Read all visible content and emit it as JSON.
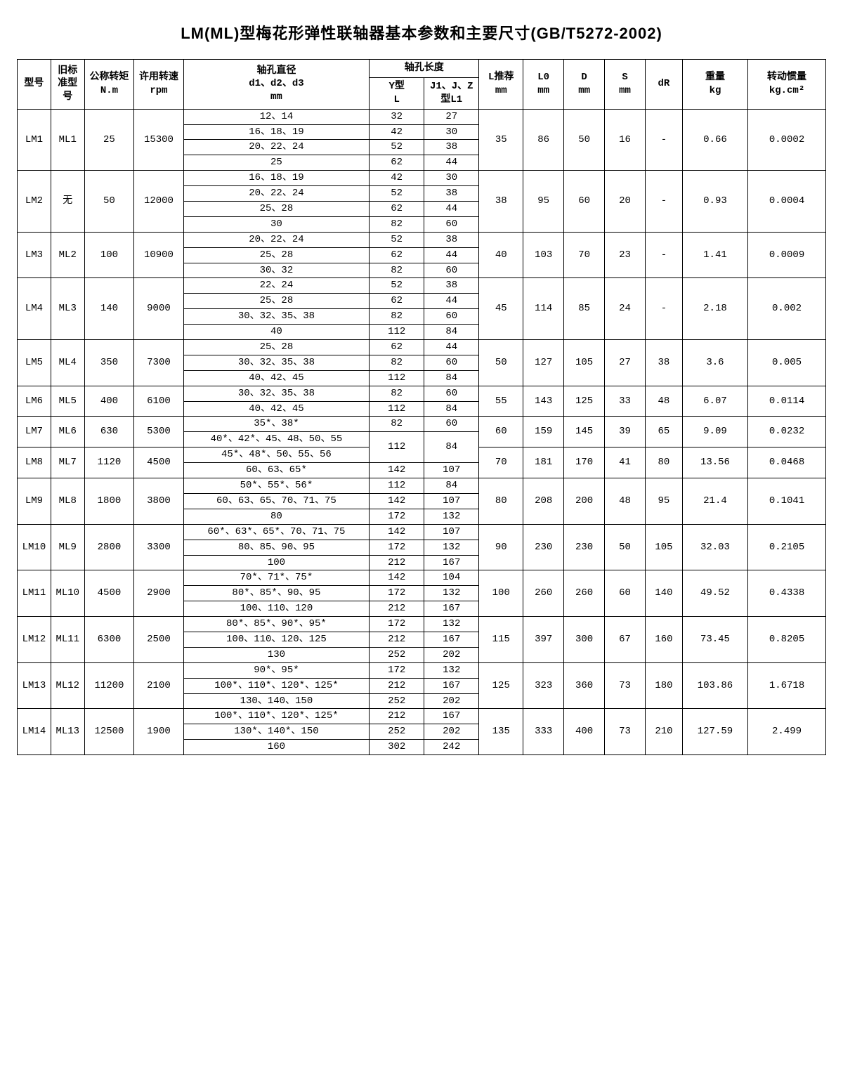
{
  "title": "LM(ML)型梅花形弹性联轴器基本参数和主要尺寸(GB/T5272-2002)",
  "headers": {
    "model": "型号",
    "old_model": "旧标准型号",
    "torque": "公称转矩\nN.m",
    "speed": "许用转速\nrpm",
    "shaft_d": "轴孔直径\nd1、d2、d3\nmm",
    "shaft_len": "轴孔长度",
    "shaft_len_y": "Y型\nL",
    "shaft_len_jz": "J1、J、Z型L1",
    "l_rec": "L推荐\nmm",
    "l0": "L0\nmm",
    "dia": "D\nmm",
    "s": "S\nmm",
    "dr": "dR",
    "weight": "重量\nkg",
    "inertia": "转动惯量\nkg.cm²"
  },
  "rows": [
    {
      "model": "LM1",
      "old": "ML1",
      "torque": "25",
      "speed": "15300",
      "sub": [
        {
          "d": "12、14",
          "yl": "32",
          "l1": "27"
        },
        {
          "d": "16、18、19",
          "yl": "42",
          "l1": "30"
        },
        {
          "d": "20、22、24",
          "yl": "52",
          "l1": "38"
        },
        {
          "d": "25",
          "yl": "62",
          "l1": "44"
        }
      ],
      "lrec": "35",
      "l0": "86",
      "dia": "50",
      "s": "16",
      "dr": "-",
      "weight": "0.66",
      "inertia": "0.0002"
    },
    {
      "model": "LM2",
      "old": "无",
      "torque": "50",
      "speed": "12000",
      "sub": [
        {
          "d": "16、18、19",
          "yl": "42",
          "l1": "30"
        },
        {
          "d": "20、22、24",
          "yl": "52",
          "l1": "38"
        },
        {
          "d": "25、28",
          "yl": "62",
          "l1": "44"
        },
        {
          "d": "30",
          "yl": "82",
          "l1": "60"
        }
      ],
      "lrec": "38",
      "l0": "95",
      "dia": "60",
      "s": "20",
      "dr": "-",
      "weight": "0.93",
      "inertia": "0.0004"
    },
    {
      "model": "LM3",
      "old": "ML2",
      "torque": "100",
      "speed": "10900",
      "sub": [
        {
          "d": "20、22、24",
          "yl": "52",
          "l1": "38"
        },
        {
          "d": "25、28",
          "yl": "62",
          "l1": "44"
        },
        {
          "d": "30、32",
          "yl": "82",
          "l1": "60"
        }
      ],
      "lrec": "40",
      "l0": "103",
      "dia": "70",
      "s": "23",
      "dr": "-",
      "weight": "1.41",
      "inertia": "0.0009"
    },
    {
      "model": "LM4",
      "old": "ML3",
      "torque": "140",
      "speed": "9000",
      "sub": [
        {
          "d": "22、24",
          "yl": "52",
          "l1": "38"
        },
        {
          "d": "25、28",
          "yl": "62",
          "l1": "44"
        },
        {
          "d": "30、32、35、38",
          "yl": "82",
          "l1": "60"
        },
        {
          "d": "40",
          "yl": "112",
          "l1": "84"
        }
      ],
      "lrec": "45",
      "l0": "114",
      "dia": "85",
      "s": "24",
      "dr": "-",
      "weight": "2.18",
      "inertia": "0.002"
    },
    {
      "model": "LM5",
      "old": "ML4",
      "torque": "350",
      "speed": "7300",
      "sub": [
        {
          "d": "25、28",
          "yl": "62",
          "l1": "44"
        },
        {
          "d": "30、32、35、38",
          "yl": "82",
          "l1": "60"
        },
        {
          "d": "40、42、45",
          "yl": "112",
          "l1": "84"
        }
      ],
      "lrec": "50",
      "l0": "127",
      "dia": "105",
      "s": "27",
      "dr": "38",
      "weight": "3.6",
      "inertia": "0.005"
    },
    {
      "model": "LM6",
      "old": "ML5",
      "torque": "400",
      "speed": "6100",
      "sub": [
        {
          "d": "30、32、35、38",
          "yl": "82",
          "l1": "60"
        },
        {
          "d": "40、42、45",
          "yl": "112",
          "l1": "84"
        }
      ],
      "lrec": "55",
      "l0": "143",
      "dia": "125",
      "s": "33",
      "dr": "48",
      "weight": "6.07",
      "inertia": "0.0114"
    },
    {
      "model": "LM7",
      "old": "ML6",
      "torque": "630",
      "speed": "5300",
      "sub": [
        {
          "d": "35*、38*",
          "yl": "82",
          "l1": "60"
        },
        {
          "d": "40*、42*、45、48、50、55",
          "yl": "112",
          "l1": "84",
          "merge_next_yl": true
        }
      ],
      "lrec": "60",
      "l0": "159",
      "dia": "145",
      "s": "39",
      "dr": "65",
      "weight": "9.09",
      "inertia": "0.0232"
    },
    {
      "model": "LM8",
      "old": "ML7",
      "torque": "1120",
      "speed": "4500",
      "sub": [
        {
          "d": "45*、48*、50、55、56",
          "yl": "",
          "l1": "",
          "yl_merged_above": true
        },
        {
          "d": "60、63、65*",
          "yl": "142",
          "l1": "107"
        }
      ],
      "lrec": "70",
      "l0": "181",
      "dia": "170",
      "s": "41",
      "dr": "80",
      "weight": "13.56",
      "inertia": "0.0468"
    },
    {
      "model": "LM9",
      "old": "ML8",
      "torque": "1800",
      "speed": "3800",
      "sub": [
        {
          "d": "50*、55*、56*",
          "yl": "112",
          "l1": "84"
        },
        {
          "d": "60、63、65、70、71、75",
          "yl": "142",
          "l1": "107"
        },
        {
          "d": "80",
          "yl": "172",
          "l1": "132"
        }
      ],
      "lrec": "80",
      "l0": "208",
      "dia": "200",
      "s": "48",
      "dr": "95",
      "weight": "21.4",
      "inertia": "0.1041"
    },
    {
      "model": "LM10",
      "old": "ML9",
      "torque": "2800",
      "speed": "3300",
      "sub": [
        {
          "d": "60*、63*、65*、70、71、75",
          "yl": "142",
          "l1": "107"
        },
        {
          "d": "80、85、90、95",
          "yl": "172",
          "l1": "132"
        },
        {
          "d": "100",
          "yl": "212",
          "l1": "167"
        }
      ],
      "lrec": "90",
      "l0": "230",
      "dia": "230",
      "s": "50",
      "dr": "105",
      "weight": "32.03",
      "inertia": "0.2105"
    },
    {
      "model": "LM11",
      "old": "ML10",
      "torque": "4500",
      "speed": "2900",
      "sub": [
        {
          "d": "70*、71*、75*",
          "yl": "142",
          "l1": "104"
        },
        {
          "d": "80*、85*、90、95",
          "yl": "172",
          "l1": "132"
        },
        {
          "d": "100、110、120",
          "yl": "212",
          "l1": "167"
        }
      ],
      "lrec": "100",
      "l0": "260",
      "dia": "260",
      "s": "60",
      "dr": "140",
      "weight": "49.52",
      "inertia": "0.4338"
    },
    {
      "model": "LM12",
      "old": "ML11",
      "torque": "6300",
      "speed": "2500",
      "sub": [
        {
          "d": "80*、85*、90*、95*",
          "yl": "172",
          "l1": "132"
        },
        {
          "d": "100、110、120、125",
          "yl": "212",
          "l1": "167"
        },
        {
          "d": "130",
          "yl": "252",
          "l1": "202"
        }
      ],
      "lrec": "115",
      "l0": "397",
      "dia": "300",
      "s": "67",
      "dr": "160",
      "weight": "73.45",
      "inertia": "0.8205"
    },
    {
      "model": "LM13",
      "old": "ML12",
      "torque": "11200",
      "speed": "2100",
      "sub": [
        {
          "d": "90*、95*",
          "yl": "172",
          "l1": "132"
        },
        {
          "d": "100*、110*、120*、125*",
          "yl": "212",
          "l1": "167"
        },
        {
          "d": "130、140、150",
          "yl": "252",
          "l1": "202"
        }
      ],
      "lrec": "125",
      "l0": "323",
      "dia": "360",
      "s": "73",
      "dr": "180",
      "weight": "103.86",
      "inertia": "1.6718"
    },
    {
      "model": "LM14",
      "old": "ML13",
      "torque": "12500",
      "speed": "1900",
      "sub": [
        {
          "d": "100*、110*、120*、125*",
          "yl": "212",
          "l1": "167"
        },
        {
          "d": "130*、140*、150",
          "yl": "252",
          "l1": "202"
        },
        {
          "d": "160",
          "yl": "302",
          "l1": "242"
        }
      ],
      "lrec": "135",
      "l0": "333",
      "dia": "400",
      "s": "73",
      "dr": "210",
      "weight": "127.59",
      "inertia": "2.499"
    }
  ],
  "styling": {
    "background_color": "#ffffff",
    "text_color": "#000000",
    "border_color": "#000000",
    "title_fontsize": 22,
    "cell_fontsize": 14,
    "font_family_body": "SimSun",
    "font_family_title": "SimHei"
  }
}
